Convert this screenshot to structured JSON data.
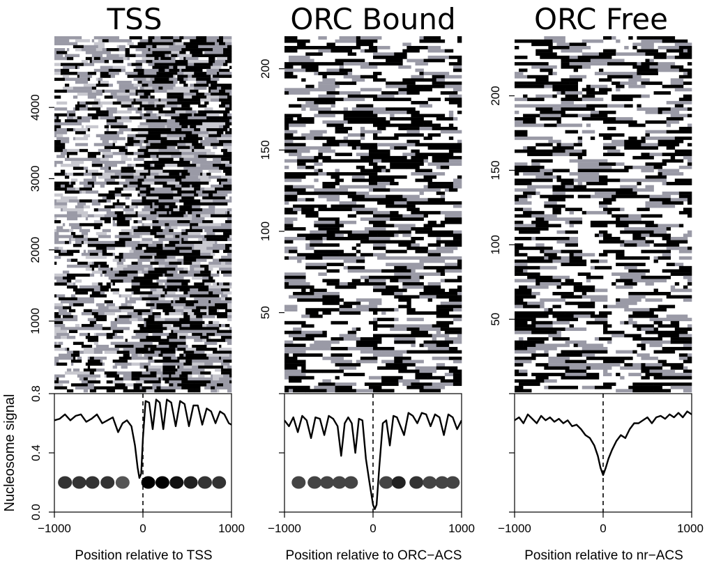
{
  "figure": {
    "y_axis_label": "Nucleosome signal",
    "x_ticks": [
      "−1000",
      "0",
      "1000"
    ],
    "signal_ticks": [
      "0.0",
      "0.4",
      "0.8"
    ]
  },
  "chart_data": [
    {
      "type": "heatmap",
      "title": "TSS",
      "xlabel": "Position relative to TSS",
      "xlim": [
        -1000,
        1000
      ],
      "row_range": [
        1,
        5000
      ],
      "row_ticks": [
        1000,
        2000,
        3000,
        4000
      ],
      "colors": {
        "low": "#ffffff",
        "mid": "#9a9aa6",
        "high": "#000000"
      },
      "profile": {
        "type": "line",
        "ylabel": "Nucleosome signal",
        "ylim": [
          0,
          0.8
        ],
        "x": [
          -1000,
          -940,
          -880,
          -820,
          -760,
          -700,
          -640,
          -580,
          -520,
          -460,
          -400,
          -340,
          -280,
          -230,
          -180,
          -130,
          -90,
          -60,
          -40,
          -20,
          0,
          30,
          70,
          110,
          150,
          190,
          230,
          270,
          320,
          370,
          420,
          470,
          520,
          570,
          620,
          670,
          720,
          770,
          820,
          870,
          920,
          970,
          1000
        ],
        "y": [
          0.62,
          0.63,
          0.66,
          0.62,
          0.65,
          0.66,
          0.61,
          0.63,
          0.66,
          0.6,
          0.62,
          0.64,
          0.54,
          0.6,
          0.62,
          0.58,
          0.45,
          0.3,
          0.23,
          0.26,
          0.5,
          0.75,
          0.74,
          0.56,
          0.76,
          0.74,
          0.56,
          0.76,
          0.74,
          0.58,
          0.75,
          0.73,
          0.58,
          0.72,
          0.72,
          0.59,
          0.7,
          0.68,
          0.6,
          0.68,
          0.66,
          0.6,
          0.59
        ]
      },
      "nucleosomes": {
        "positions": [
          -880,
          -720,
          -570,
          -400,
          -230,
          60,
          220,
          380,
          540,
          700,
          860
        ],
        "colors": [
          "#333333",
          "#333333",
          "#333333",
          "#333333",
          "#555555",
          "#000000",
          "#000000",
          "#111111",
          "#222222",
          "#333333",
          "#333333"
        ]
      }
    },
    {
      "type": "heatmap",
      "title": "ORC Bound",
      "xlabel": "Position relative to ORC−ACS",
      "xlim": [
        -1000,
        1000
      ],
      "row_range": [
        1,
        220
      ],
      "row_ticks": [
        50,
        100,
        150,
        200
      ],
      "colors": {
        "low": "#ffffff",
        "mid": "#9a9aa6",
        "high": "#000000"
      },
      "profile": {
        "type": "line",
        "ylabel": "Nucleosome signal",
        "ylim": [
          0,
          0.8
        ],
        "x": [
          -1000,
          -950,
          -900,
          -850,
          -800,
          -750,
          -700,
          -650,
          -600,
          -550,
          -500,
          -450,
          -400,
          -360,
          -320,
          -280,
          -240,
          -200,
          -160,
          -120,
          -80,
          -40,
          0,
          20,
          40,
          70,
          110,
          150,
          190,
          230,
          270,
          310,
          350,
          400,
          450,
          500,
          550,
          600,
          650,
          700,
          750,
          800,
          850,
          900,
          950,
          1000
        ],
        "y": [
          0.62,
          0.58,
          0.64,
          0.54,
          0.65,
          0.62,
          0.5,
          0.64,
          0.63,
          0.52,
          0.65,
          0.63,
          0.58,
          0.38,
          0.6,
          0.64,
          0.6,
          0.4,
          0.63,
          0.62,
          0.36,
          0.2,
          0.05,
          0.02,
          0.05,
          0.3,
          0.6,
          0.62,
          0.45,
          0.65,
          0.64,
          0.58,
          0.52,
          0.67,
          0.65,
          0.6,
          0.67,
          0.66,
          0.58,
          0.66,
          0.64,
          0.52,
          0.66,
          0.64,
          0.56,
          0.62
        ]
      },
      "nucleosomes": {
        "positions": [
          -840,
          -660,
          -520,
          -380,
          -250,
          150,
          290,
          490,
          640,
          780,
          900
        ],
        "colors": [
          "#444444",
          "#444444",
          "#444444",
          "#444444",
          "#444444",
          "#444444",
          "#222222",
          "#333333",
          "#444444",
          "#444444",
          "#444444"
        ]
      }
    },
    {
      "type": "heatmap",
      "title": "ORC Free",
      "xlabel": "Position relative to nr−ACS",
      "xlim": [
        -1000,
        1000
      ],
      "row_range": [
        1,
        240
      ],
      "row_ticks": [
        50,
        100,
        150,
        200
      ],
      "colors": {
        "low": "#ffffff",
        "mid": "#9a9aa6",
        "high": "#000000"
      },
      "profile": {
        "type": "line",
        "ylabel": "Nucleosome signal",
        "ylim": [
          0,
          0.8
        ],
        "x": [
          -1000,
          -950,
          -900,
          -850,
          -800,
          -750,
          -700,
          -650,
          -600,
          -550,
          -500,
          -450,
          -400,
          -350,
          -300,
          -250,
          -200,
          -150,
          -100,
          -60,
          -30,
          0,
          30,
          60,
          100,
          150,
          200,
          250,
          300,
          350,
          400,
          450,
          500,
          550,
          600,
          650,
          700,
          750,
          800,
          850,
          900,
          950,
          1000
        ],
        "y": [
          0.62,
          0.64,
          0.6,
          0.66,
          0.63,
          0.6,
          0.65,
          0.62,
          0.64,
          0.61,
          0.63,
          0.6,
          0.62,
          0.58,
          0.59,
          0.56,
          0.52,
          0.5,
          0.45,
          0.38,
          0.3,
          0.25,
          0.3,
          0.36,
          0.42,
          0.48,
          0.52,
          0.5,
          0.56,
          0.6,
          0.6,
          0.62,
          0.64,
          0.6,
          0.64,
          0.65,
          0.63,
          0.66,
          0.64,
          0.67,
          0.64,
          0.68,
          0.66
        ]
      }
    }
  ]
}
